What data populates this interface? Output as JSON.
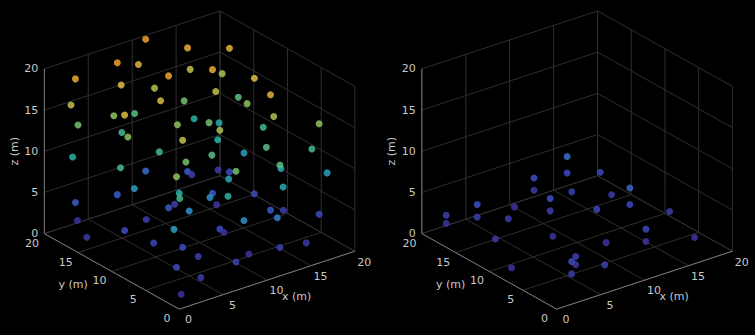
{
  "chart_data": [
    {
      "type": "scatter3d",
      "xlabel": "x (m)",
      "ylabel": "y (m)",
      "zlabel": "z (m)",
      "xlim": [
        0,
        20
      ],
      "ylim": [
        0,
        20
      ],
      "zlim": [
        0,
        20
      ],
      "xticks": [
        0,
        5,
        10,
        15,
        20
      ],
      "yticks": [
        0,
        5,
        10,
        15,
        20
      ],
      "zticks": [
        0,
        5,
        10,
        15,
        20
      ],
      "grid": true,
      "points": [
        [
          2,
          18,
          19
        ],
        [
          1.5,
          18,
          16
        ],
        [
          2.6,
          18.4,
          13
        ],
        [
          1.3,
          17.5,
          10
        ],
        [
          2,
          18,
          4
        ],
        [
          6,
          17,
          20
        ],
        [
          6.6,
          17.2,
          17
        ],
        [
          5.3,
          16.6,
          14
        ],
        [
          6.9,
          17.5,
          11
        ],
        [
          6,
          17,
          4
        ],
        [
          10,
          18,
          21
        ],
        [
          9.4,
          18.3,
          18
        ],
        [
          10.7,
          17.6,
          15
        ],
        [
          9.2,
          18.6,
          12
        ],
        [
          10,
          18,
          5
        ],
        [
          14,
          17,
          19
        ],
        [
          14.6,
          17.4,
          16
        ],
        [
          13.3,
          16.6,
          13
        ],
        [
          14.9,
          17.2,
          10
        ],
        [
          14,
          17,
          4
        ],
        [
          18,
          16,
          18
        ],
        [
          17.4,
          16.3,
          15
        ],
        [
          18.7,
          15.6,
          12
        ],
        [
          17.2,
          16.5,
          9
        ],
        [
          18,
          16,
          3
        ],
        [
          3,
          12,
          17
        ],
        [
          3.6,
          12.3,
          14
        ],
        [
          2.3,
          11.7,
          11
        ],
        [
          3.8,
          11.6,
          8
        ],
        [
          3,
          12,
          3
        ],
        [
          8,
          12,
          20
        ],
        [
          7.4,
          12.4,
          17
        ],
        [
          8.7,
          11.6,
          14
        ],
        [
          7.1,
          12.2,
          11
        ],
        [
          8,
          12,
          4
        ],
        [
          13,
          12,
          19
        ],
        [
          13.6,
          12.3,
          16
        ],
        [
          12.3,
          11.6,
          13
        ],
        [
          13.9,
          12.4,
          10
        ],
        [
          13,
          12,
          4
        ],
        [
          17,
          11,
          17
        ],
        [
          16.4,
          11.3,
          14
        ],
        [
          17.7,
          10.6,
          11
        ],
        [
          16.2,
          11.5,
          8
        ],
        [
          17,
          11,
          3
        ],
        [
          5,
          6,
          16
        ],
        [
          5.6,
          6.3,
          13
        ],
        [
          4.3,
          5.6,
          10
        ],
        [
          5.9,
          6.2,
          7
        ],
        [
          5,
          6,
          3
        ],
        [
          10,
          7,
          15
        ],
        [
          9.4,
          7.4,
          12
        ],
        [
          10.7,
          6.6,
          9
        ],
        [
          9.1,
          7.3,
          7
        ],
        [
          10,
          7,
          3
        ],
        [
          15,
          6,
          18
        ],
        [
          15.6,
          6.3,
          15
        ],
        [
          14.3,
          5.7,
          12
        ],
        [
          15.8,
          5.5,
          9
        ],
        [
          15,
          6,
          4
        ],
        [
          19,
          4,
          14
        ],
        [
          18.4,
          4.3,
          11
        ],
        [
          19.6,
          3.6,
          8
        ],
        [
          19,
          4,
          3
        ],
        [
          2,
          3,
          14
        ],
        [
          2.6,
          3.3,
          11
        ],
        [
          1.4,
          2.6,
          8
        ],
        [
          2,
          3,
          3
        ],
        [
          8,
          2,
          13
        ],
        [
          7.4,
          2.4,
          10
        ],
        [
          8.6,
          1.6,
          7
        ],
        [
          8,
          2,
          2
        ],
        [
          13,
          2,
          12
        ],
        [
          13.6,
          2.3,
          9
        ],
        [
          12.4,
          1.6,
          6
        ],
        [
          13,
          2,
          2
        ],
        [
          1,
          1,
          1
        ],
        [
          4,
          2,
          1.5
        ],
        [
          6,
          5,
          2
        ],
        [
          11,
          4,
          1
        ],
        [
          16,
          2,
          1.5
        ],
        [
          18,
          8,
          2
        ],
        [
          12,
          9,
          1
        ],
        [
          4,
          9,
          2.5
        ],
        [
          1,
          15,
          1.5
        ],
        [
          7,
          14,
          2
        ],
        [
          15,
          14,
          1
        ],
        [
          19,
          19,
          1.5
        ],
        [
          11,
          15,
          2
        ],
        [
          3,
          19,
          1
        ],
        [
          16,
          19,
          2
        ]
      ]
    },
    {
      "type": "scatter3d",
      "xlabel": "x (m)",
      "ylabel": "y (m)",
      "zlabel": "z (m)",
      "xlim": [
        0,
        20
      ],
      "ylim": [
        0,
        20
      ],
      "zlim": [
        0,
        20
      ],
      "xticks": [
        0,
        5,
        10,
        15,
        20
      ],
      "yticks": [
        0,
        5,
        10,
        15,
        20
      ],
      "zticks": [
        0,
        5,
        10,
        15,
        20
      ],
      "grid": true,
      "points": [
        [
          2,
          19,
          2
        ],
        [
          2,
          19,
          1
        ],
        [
          4,
          17,
          3.5
        ],
        [
          4,
          17,
          2
        ],
        [
          3,
          13,
          1.5
        ],
        [
          6,
          15,
          2
        ],
        [
          9,
          18,
          1
        ],
        [
          12,
          19,
          3
        ],
        [
          12,
          19,
          1.5
        ],
        [
          15,
          18,
          5
        ],
        [
          15,
          18,
          3
        ],
        [
          14,
          16,
          2
        ],
        [
          18,
          17,
          2.5
        ],
        [
          17,
          14,
          1.5
        ],
        [
          10,
          14,
          3.5
        ],
        [
          10,
          14,
          2
        ],
        [
          8,
          11,
          1
        ],
        [
          13,
          11,
          2.5
        ],
        [
          16,
          10,
          4.5
        ],
        [
          16,
          10,
          2.5
        ],
        [
          19,
          8,
          1.5
        ],
        [
          11,
          7,
          1
        ],
        [
          14,
          5,
          2.5
        ],
        [
          14,
          5,
          1
        ],
        [
          6,
          5,
          2
        ],
        [
          6,
          5,
          1
        ],
        [
          4,
          3,
          3
        ],
        [
          4,
          3,
          1.5
        ],
        [
          7,
          2,
          2
        ],
        [
          1,
          8,
          1
        ],
        [
          18,
          3,
          1
        ]
      ]
    }
  ]
}
